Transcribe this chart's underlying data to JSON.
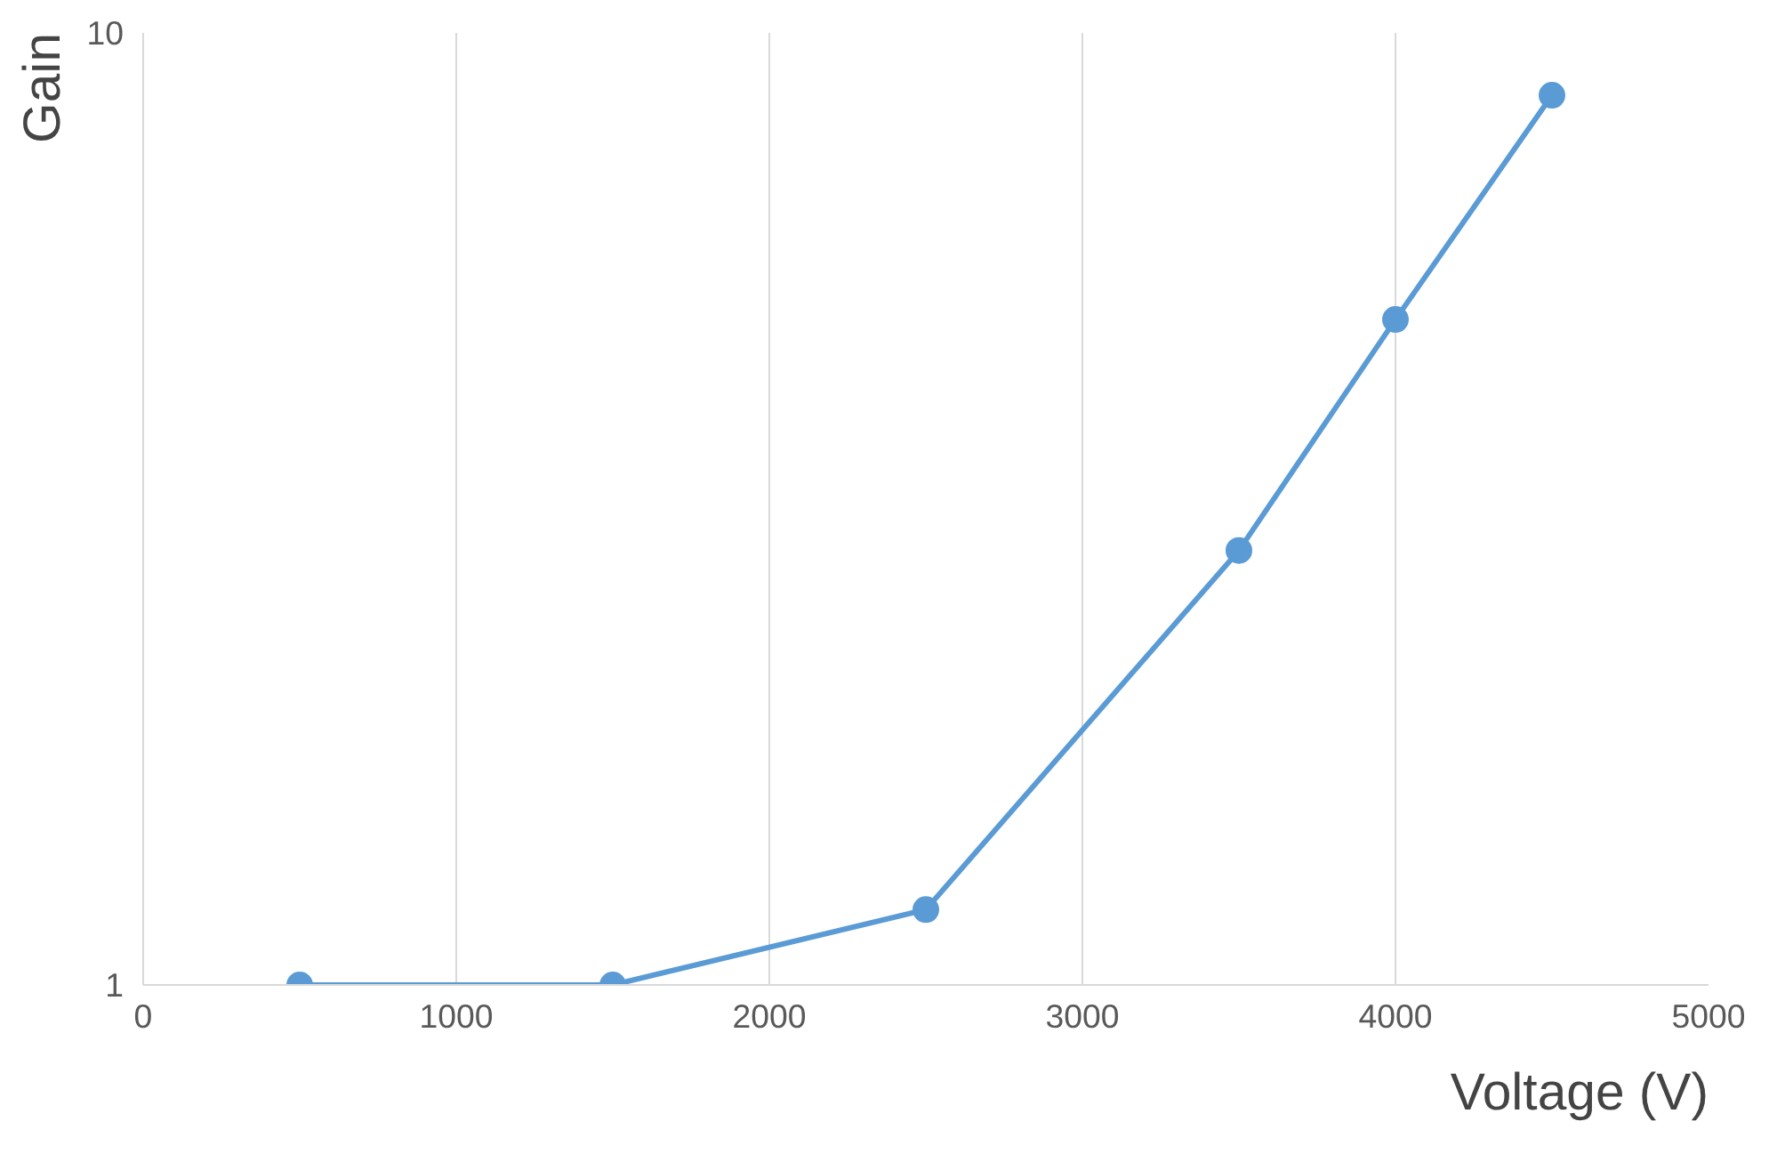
{
  "chart_data": {
    "type": "line",
    "xlabel": "Voltage (V)",
    "ylabel": "Gain",
    "x": [
      500,
      1500,
      2500,
      3500,
      4000,
      4500
    ],
    "series": [
      {
        "color": "#5b9bd5",
        "values": [
          1,
          1,
          1.2,
          2.86,
          5.0,
          8.6
        ]
      }
    ],
    "xlim": [
      0,
      5000
    ],
    "xticks": [
      0,
      1000,
      2000,
      3000,
      4000,
      5000
    ],
    "ylim": [
      1,
      10
    ],
    "yticks": [
      1,
      10
    ],
    "log": "y",
    "grid": true,
    "marker": "circle",
    "line_style": "solid"
  }
}
